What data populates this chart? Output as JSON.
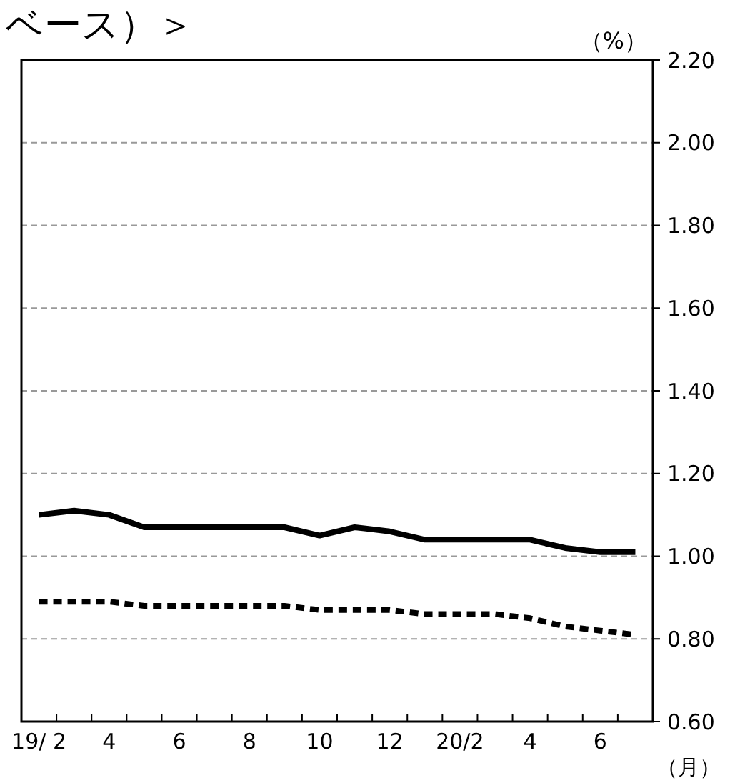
{
  "chart_data": {
    "type": "line",
    "title": "ベース）＞",
    "ylabel": "（%）",
    "xlabel": "（月）",
    "categories": [
      "19/ 2",
      null,
      "4",
      null,
      "6",
      null,
      "8",
      null,
      "10",
      null,
      "12",
      null,
      "20/2",
      null,
      "4",
      null,
      "6",
      null
    ],
    "series": [
      {
        "color": "#000000",
        "line_style": "solid",
        "values": [
          1.1,
          1.11,
          1.1,
          1.07,
          1.07,
          1.07,
          1.07,
          1.07,
          1.05,
          1.07,
          1.06,
          1.04,
          1.04,
          1.04,
          1.04,
          1.02,
          1.01,
          1.01
        ]
      },
      {
        "color": "#000000",
        "line_style": "dashed",
        "values": [
          0.89,
          0.89,
          0.89,
          0.88,
          0.88,
          0.88,
          0.88,
          0.88,
          0.87,
          0.87,
          0.87,
          0.86,
          0.86,
          0.86,
          0.85,
          0.83,
          0.82,
          0.81
        ]
      }
    ],
    "ylim": [
      0.6,
      2.2
    ],
    "yticks": [
      {
        "value": 0.6,
        "label": "0.60"
      },
      {
        "value": 0.8,
        "label": "0.80"
      },
      {
        "value": 1.0,
        "label": "1.00"
      },
      {
        "value": 1.2,
        "label": "1.20"
      },
      {
        "value": 1.4,
        "label": "1.40"
      },
      {
        "value": 1.6,
        "label": "1.60"
      },
      {
        "value": 1.8,
        "label": "1.80"
      },
      {
        "value": 2.0,
        "label": "2.00"
      },
      {
        "value": 2.2,
        "label": "2.20"
      }
    ],
    "grid": "y",
    "marker": "none"
  }
}
